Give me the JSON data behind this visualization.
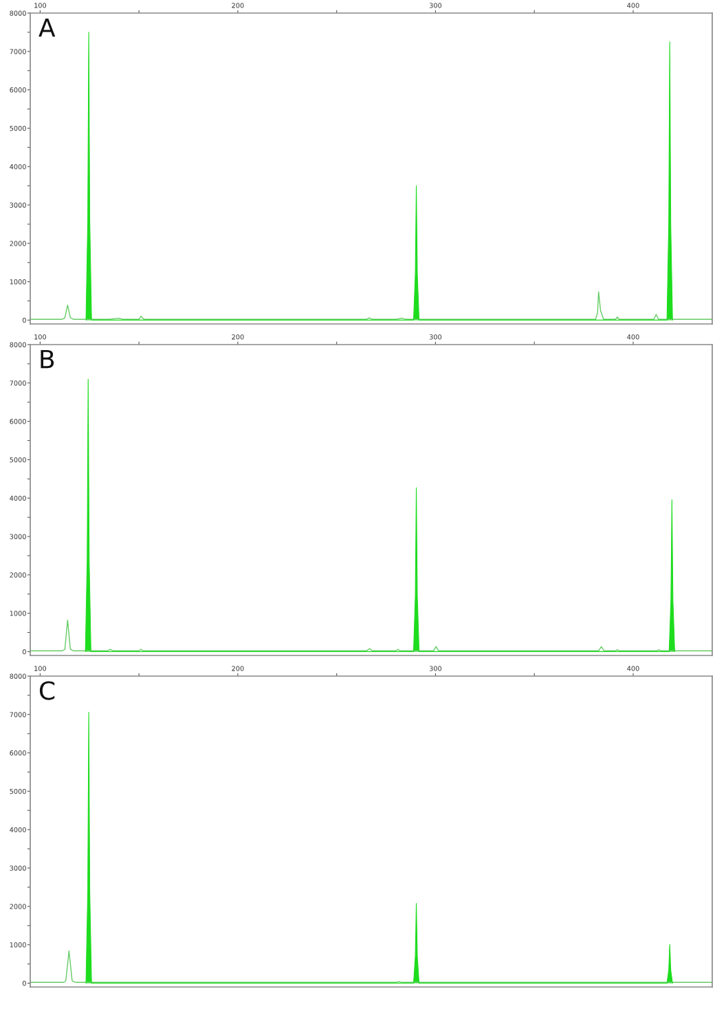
{
  "chart_data": [
    {
      "type": "area",
      "annotations": [
        "A"
      ],
      "xlim": [
        95,
        440
      ],
      "ylim": [
        -100,
        8000
      ],
      "grid": false,
      "marker": "none",
      "line_style": "solid",
      "xticks": [
        100,
        {
          "value": 150,
          "label": null
        },
        200,
        {
          "value": 250,
          "label": null
        },
        300,
        {
          "value": 350,
          "label": null
        },
        400
      ],
      "yticks": [
        0,
        {
          "value": 500,
          "label": null
        },
        1000,
        {
          "value": 1500,
          "label": null
        },
        2000,
        {
          "value": 2500,
          "label": null
        },
        3000,
        {
          "value": 3500,
          "label": null
        },
        4000,
        {
          "value": 4500,
          "label": null
        },
        5000,
        {
          "value": 5500,
          "label": null
        },
        6000,
        {
          "value": 6500,
          "label": null
        },
        7000,
        {
          "value": 7500,
          "label": null
        },
        8000
      ],
      "series": [
        {
          "type": "line",
          "color": "#66cc66",
          "x": [
            95,
            111,
            112.5,
            113.9,
            115.3,
            117,
            135,
            140,
            142,
            150,
            151,
            152.5,
            265,
            266.5,
            268,
            280,
            283,
            285,
            381,
            382,
            382.5,
            383.5,
            385,
            391,
            392,
            393,
            410.5,
            411.6,
            412.8,
            440
          ],
          "values": [
            20,
            20,
            60,
            390,
            60,
            20,
            20,
            50,
            20,
            20,
            100,
            20,
            20,
            60,
            20,
            20,
            50,
            20,
            20,
            200,
            740,
            250,
            20,
            20,
            80,
            20,
            20,
            150,
            20,
            20
          ]
        },
        {
          "color": "#1edc1e",
          "x": [
            123.2,
            124.1,
            124.6,
            125.1,
            126,
            288.9,
            289.8,
            290.3,
            290.8,
            291.7,
            417.1,
            418,
            418.5,
            419,
            419.9
          ],
          "values": [
            0,
            2600,
            7500,
            2600,
            0,
            0,
            1200,
            3500,
            1200,
            0,
            0,
            2500,
            7250,
            2500,
            0
          ]
        }
      ]
    },
    {
      "type": "area",
      "annotations": [
        "B"
      ],
      "xlim": [
        95,
        440
      ],
      "ylim": [
        -100,
        8000
      ],
      "grid": false,
      "marker": "none",
      "line_style": "solid",
      "xticks": [
        100,
        {
          "value": 150,
          "label": null
        },
        200,
        {
          "value": 250,
          "label": null
        },
        300,
        {
          "value": 350,
          "label": null
        },
        400
      ],
      "yticks": [
        0,
        {
          "value": 500,
          "label": null
        },
        1000,
        {
          "value": 1500,
          "label": null
        },
        2000,
        {
          "value": 2500,
          "label": null
        },
        3000,
        {
          "value": 3500,
          "label": null
        },
        4000,
        {
          "value": 4500,
          "label": null
        },
        5000,
        {
          "value": 5500,
          "label": null
        },
        6000,
        {
          "value": 6500,
          "label": null
        },
        7000,
        {
          "value": 7500,
          "label": null
        },
        8000
      ],
      "series": [
        {
          "type": "line",
          "color": "#66cc66",
          "x": [
            95,
            111,
            112.5,
            113.9,
            115.3,
            117,
            134,
            135.5,
            137,
            150,
            151,
            152,
            265,
            266.7,
            268,
            280,
            281,
            282,
            299,
            300.3,
            301.6,
            382.5,
            383.9,
            385.3,
            391,
            392,
            393,
            412,
            413,
            414,
            440
          ],
          "values": [
            20,
            20,
            60,
            820,
            60,
            20,
            20,
            60,
            20,
            20,
            60,
            20,
            20,
            80,
            20,
            20,
            60,
            20,
            20,
            130,
            20,
            20,
            130,
            20,
            20,
            50,
            20,
            20,
            50,
            20,
            20
          ]
        },
        {
          "color": "#1edc1e",
          "x": [
            122.9,
            123.8,
            124.3,
            124.8,
            125.7,
            288.9,
            289.8,
            290.3,
            290.8,
            291.7,
            418.2,
            419.1,
            419.6,
            420.1,
            421
          ],
          "values": [
            0,
            2400,
            7100,
            2400,
            0,
            0,
            1450,
            4270,
            1450,
            0,
            0,
            1350,
            3960,
            1350,
            0
          ]
        }
      ]
    },
    {
      "type": "area",
      "annotations": [
        "C"
      ],
      "xlim": [
        95,
        440
      ],
      "ylim": [
        -100,
        8000
      ],
      "grid": false,
      "marker": "none",
      "line_style": "solid",
      "xticks": [
        100,
        {
          "value": 150,
          "label": null
        },
        200,
        {
          "value": 250,
          "label": null
        },
        300,
        {
          "value": 350,
          "label": null
        },
        400
      ],
      "yticks": [
        0,
        {
          "value": 500,
          "label": null
        },
        1000,
        {
          "value": 1500,
          "label": null
        },
        2000,
        {
          "value": 2500,
          "label": null
        },
        3000,
        {
          "value": 3500,
          "label": null
        },
        4000,
        {
          "value": 4500,
          "label": null
        },
        5000,
        {
          "value": 5500,
          "label": null
        },
        6000,
        {
          "value": 6500,
          "label": null
        },
        7000,
        {
          "value": 7500,
          "label": null
        },
        8000
      ],
      "series": [
        {
          "type": "line",
          "color": "#66cc66",
          "x": [
            95,
            112,
            113,
            114.6,
            116.2,
            118,
            280,
            281.5,
            283,
            440
          ],
          "values": [
            20,
            20,
            60,
            840,
            60,
            20,
            20,
            40,
            20,
            20
          ]
        },
        {
          "color": "#1edc1e",
          "x": [
            123.2,
            124.1,
            124.6,
            125.1,
            126,
            288.9,
            289.8,
            290.3,
            290.8,
            291.7,
            417.1,
            418,
            418.5,
            419,
            419.9
          ],
          "values": [
            0,
            2400,
            7060,
            2400,
            0,
            0,
            700,
            2080,
            700,
            0,
            0,
            340,
            1010,
            340,
            0
          ]
        }
      ]
    }
  ]
}
